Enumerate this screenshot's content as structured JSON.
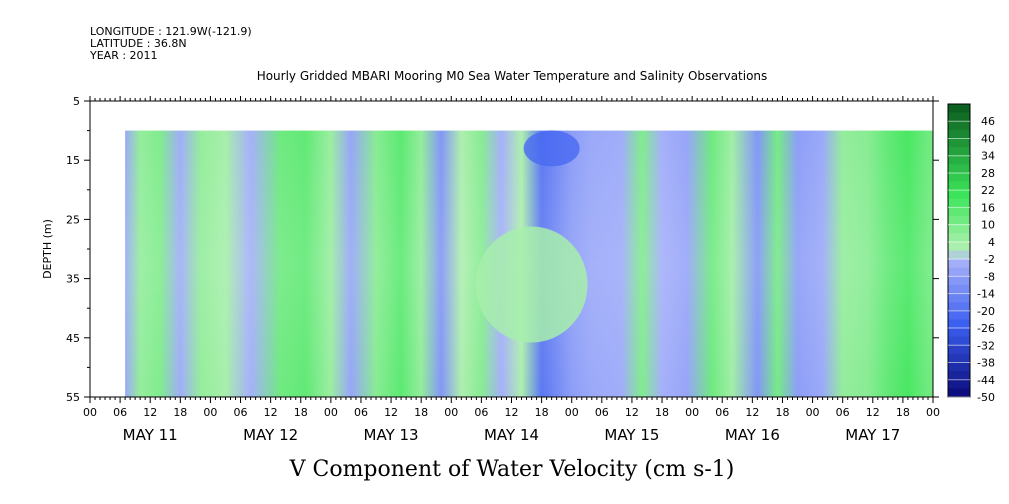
{
  "header": {
    "longitude": "LONGITUDE : 121.9W(-121.9)",
    "latitude": "LATITUDE : 36.8N",
    "year": "YEAR : 2011"
  },
  "chart_data": {
    "type": "heatmap",
    "title": "Hourly Gridded MBARI Mooring M0 Sea Water Temperature and Salinity Observations",
    "variable_label": "V Component of Water Velocity (cm s-1)",
    "ylabel": "DEPTH (m)",
    "y_ticks": [
      "5",
      "15",
      "25",
      "35",
      "45",
      "55"
    ],
    "ylim": [
      5,
      55
    ],
    "y_inverted": true,
    "x_hour_ticks": [
      "00",
      "06",
      "12",
      "18",
      "00",
      "06",
      "12",
      "18",
      "00",
      "06",
      "12",
      "18",
      "00",
      "06",
      "12",
      "18",
      "00",
      "06",
      "12",
      "18",
      "00",
      "06",
      "12",
      "18",
      "00",
      "06",
      "12",
      "18",
      "00"
    ],
    "x_day_labels": [
      "MAY 11",
      "MAY 12",
      "MAY 13",
      "MAY 14",
      "MAY 15",
      "MAY 16",
      "MAY 17"
    ],
    "data_depth_range": [
      10,
      55
    ],
    "data_time_range_hours": [
      7,
      169
    ],
    "colorbar": {
      "levels": [
        "46",
        "40",
        "34",
        "28",
        "22",
        "16",
        "10",
        "4",
        "-2",
        "-8",
        "-14",
        "-20",
        "-26",
        "-32",
        "-38",
        "-44",
        "-50"
      ],
      "range": [
        -50,
        52
      ],
      "colors": {
        "strong_negative": "#0a0a78",
        "negative": "#3a5ef0",
        "weak_negative": "#aab4fa",
        "weak_positive": "#b4f0b4",
        "positive": "#3ce65a",
        "strong_positive": "#0a5a1e"
      }
    },
    "bands": [
      {
        "hour": 7,
        "value": -5
      },
      {
        "hour": 10,
        "value": 6
      },
      {
        "hour": 14,
        "value": 9
      },
      {
        "hour": 18,
        "value": -4
      },
      {
        "hour": 22,
        "value": 6
      },
      {
        "hour": 27,
        "value": 3
      },
      {
        "hour": 32,
        "value": -3
      },
      {
        "hour": 38,
        "value": 12
      },
      {
        "hour": 43,
        "value": 14
      },
      {
        "hour": 48,
        "value": 5
      },
      {
        "hour": 52,
        "value": -6
      },
      {
        "hour": 57,
        "value": 8
      },
      {
        "hour": 62,
        "value": 15
      },
      {
        "hour": 66,
        "value": 6
      },
      {
        "hour": 70,
        "value": -10
      },
      {
        "hour": 74,
        "value": 2
      },
      {
        "hour": 78,
        "value": 8
      },
      {
        "hour": 82,
        "value": -3
      },
      {
        "hour": 86,
        "value": 2
      },
      {
        "hour": 90,
        "value": -18
      },
      {
        "hour": 96,
        "value": -8
      },
      {
        "hour": 100,
        "value": -5
      },
      {
        "hour": 106,
        "value": -4
      },
      {
        "hour": 110,
        "value": 9
      },
      {
        "hour": 114,
        "value": -3
      },
      {
        "hour": 119,
        "value": -6
      },
      {
        "hour": 124,
        "value": 12
      },
      {
        "hour": 128,
        "value": 4
      },
      {
        "hour": 133,
        "value": -10
      },
      {
        "hour": 137,
        "value": 11
      },
      {
        "hour": 141,
        "value": -8
      },
      {
        "hour": 146,
        "value": -5
      },
      {
        "hour": 150,
        "value": 6
      },
      {
        "hour": 155,
        "value": 8
      },
      {
        "hour": 159,
        "value": 14
      },
      {
        "hour": 163,
        "value": 18
      },
      {
        "hour": 167,
        "value": 12
      }
    ],
    "features": [
      {
        "kind": "bulge",
        "hour_center": 88,
        "depth_center": 36,
        "value": 3
      },
      {
        "kind": "core",
        "hour_center": 92,
        "depth_center": 13,
        "value": -22
      }
    ]
  }
}
